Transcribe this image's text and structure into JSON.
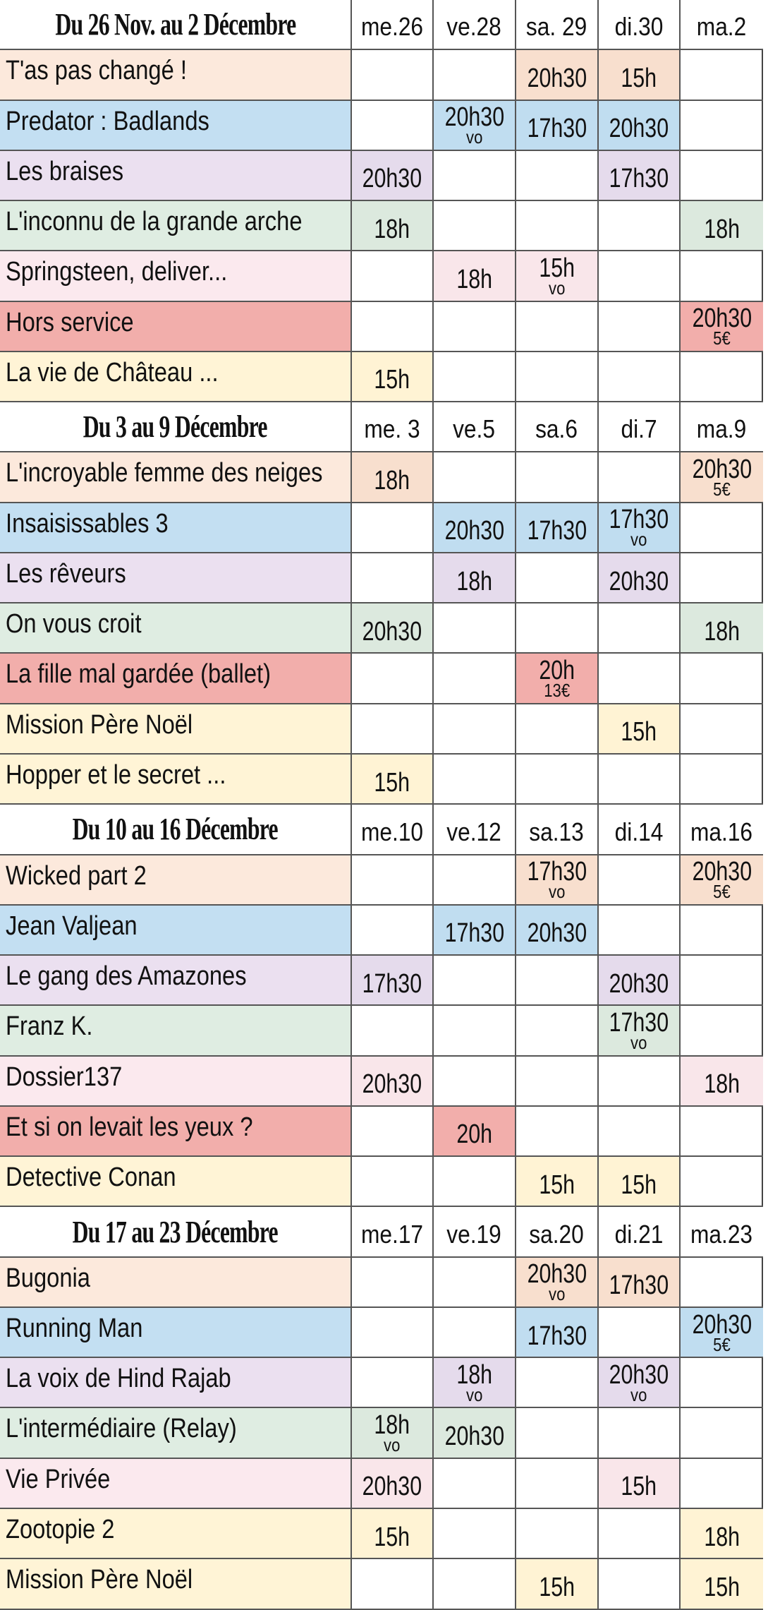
{
  "colors": {
    "peach": "#fce9dc",
    "blue": "#c3dff2",
    "lavender": "#ebe0f0",
    "green": "#dfede2",
    "pink": "#fbe9ee",
    "red": "#f2aeab",
    "yellow": "#fff4d6"
  },
  "cell_colors": {
    "peach": "#f8dfce",
    "blue": "#c0ddf0",
    "lavender": "#e5dbec",
    "green": "#dce9de",
    "pink": "#f9e6ea",
    "red": "#f2aeab",
    "yellow": "#fff3d4"
  },
  "weeks": [
    {
      "title": "Du 26 Nov. au 2 Décembre",
      "days": [
        "me.26",
        "ve.28",
        "sa. 29",
        "di.30",
        "ma.2"
      ],
      "films": [
        {
          "title": "T'as pas changé !",
          "color": "peach",
          "showings": [
            null,
            null,
            {
              "time": "20h30"
            },
            {
              "time": "15h"
            },
            null
          ]
        },
        {
          "title": "Predator : Badlands",
          "color": "blue",
          "showings": [
            null,
            {
              "time": "20h30",
              "note": "vo"
            },
            {
              "time": "17h30"
            },
            {
              "time": "20h30"
            },
            null
          ]
        },
        {
          "title": "Les braises",
          "color": "lavender",
          "showings": [
            {
              "time": "20h30"
            },
            null,
            null,
            {
              "time": "17h30"
            },
            null
          ]
        },
        {
          "title": "L'inconnu de la grande arche",
          "color": "green",
          "showings": [
            {
              "time": "18h"
            },
            null,
            null,
            null,
            {
              "time": "18h"
            }
          ]
        },
        {
          "title": "Springsteen, deliver...",
          "color": "pink",
          "showings": [
            null,
            {
              "time": "18h"
            },
            {
              "time": "15h",
              "note": "vo"
            },
            null,
            null
          ]
        },
        {
          "title": "Hors service",
          "color": "red",
          "showings": [
            null,
            null,
            null,
            null,
            {
              "time": "20h30",
              "note": "5€"
            }
          ]
        },
        {
          "title": "La vie de Château ...",
          "color": "yellow",
          "showings": [
            {
              "time": "15h"
            },
            null,
            null,
            null,
            null
          ]
        }
      ]
    },
    {
      "title": "Du 3 au 9 Décembre",
      "days": [
        "me. 3",
        "ve.5",
        "sa.6",
        "di.7",
        "ma.9"
      ],
      "films": [
        {
          "title": "L'incroyable femme des neiges",
          "color": "peach",
          "showings": [
            {
              "time": "18h"
            },
            null,
            null,
            null,
            {
              "time": "20h30",
              "note": "5€"
            }
          ]
        },
        {
          "title": "Insaisissables 3",
          "color": "blue",
          "showings": [
            null,
            {
              "time": "20h30"
            },
            {
              "time": "17h30"
            },
            {
              "time": "17h30",
              "note": "vo"
            },
            null
          ]
        },
        {
          "title": "Les rêveurs",
          "color": "lavender",
          "showings": [
            null,
            {
              "time": "18h"
            },
            null,
            {
              "time": "20h30"
            },
            null
          ]
        },
        {
          "title": "On vous croit",
          "color": "green",
          "showings": [
            {
              "time": "20h30"
            },
            null,
            null,
            null,
            {
              "time": "18h"
            }
          ]
        },
        {
          "title": "La fille mal gardée (ballet)",
          "color": "red",
          "showings": [
            null,
            null,
            {
              "time": "20h",
              "note": "13€"
            },
            null,
            null
          ]
        },
        {
          "title": "Mission Père Noël",
          "color": "yellow",
          "showings": [
            null,
            null,
            null,
            {
              "time": "15h"
            },
            null
          ]
        },
        {
          "title": "Hopper et le secret ...",
          "color": "yellow",
          "showings": [
            {
              "time": "15h"
            },
            null,
            null,
            null,
            null
          ]
        }
      ]
    },
    {
      "title": "Du 10 au 16 Décembre",
      "days": [
        "me.10",
        "ve.12",
        "sa.13",
        "di.14",
        "ma.16"
      ],
      "films": [
        {
          "title": "Wicked part 2",
          "color": "peach",
          "showings": [
            null,
            null,
            {
              "time": "17h30",
              "note": "vo"
            },
            null,
            {
              "time": "20h30",
              "note": "5€"
            }
          ]
        },
        {
          "title": "Jean Valjean",
          "color": "blue",
          "showings": [
            null,
            {
              "time": "17h30"
            },
            {
              "time": "20h30"
            },
            null,
            null
          ]
        },
        {
          "title": "Le gang des Amazones",
          "color": "lavender",
          "showings": [
            {
              "time": "17h30"
            },
            null,
            null,
            {
              "time": "20h30"
            },
            null
          ]
        },
        {
          "title": "Franz K.",
          "color": "green",
          "showings": [
            null,
            null,
            null,
            {
              "time": "17h30",
              "note": "vo"
            },
            null
          ]
        },
        {
          "title": "Dossier137",
          "color": "pink",
          "showings": [
            {
              "time": "20h30"
            },
            null,
            null,
            null,
            {
              "time": "18h"
            }
          ]
        },
        {
          "title": "Et si on levait les yeux ?",
          "color": "red",
          "showings": [
            null,
            {
              "time": "20h"
            },
            null,
            null,
            null
          ]
        },
        {
          "title": "Detective Conan",
          "color": "yellow",
          "showings": [
            null,
            null,
            {
              "time": "15h"
            },
            {
              "time": "15h"
            },
            null
          ]
        }
      ]
    },
    {
      "title": "Du 17 au 23 Décembre",
      "days": [
        "me.17",
        "ve.19",
        "sa.20",
        "di.21",
        "ma.23"
      ],
      "films": [
        {
          "title": "Bugonia",
          "color": "peach",
          "showings": [
            null,
            null,
            {
              "time": "20h30",
              "note": "vo"
            },
            {
              "time": "17h30"
            },
            null
          ]
        },
        {
          "title": "Running Man",
          "color": "blue",
          "showings": [
            null,
            null,
            {
              "time": "17h30"
            },
            null,
            {
              "time": "20h30",
              "note": "5€"
            }
          ]
        },
        {
          "title": "La voix de Hind Rajab",
          "color": "lavender",
          "showings": [
            null,
            {
              "time": "18h",
              "note": "vo"
            },
            null,
            {
              "time": "20h30",
              "note": "vo"
            },
            null
          ]
        },
        {
          "title": "L'intermédiaire (Relay)",
          "color": "green",
          "showings": [
            {
              "time": "18h",
              "note": "vo"
            },
            {
              "time": "20h30"
            },
            null,
            null,
            null
          ]
        },
        {
          "title": "Vie Privée",
          "color": "pink",
          "showings": [
            {
              "time": "20h30"
            },
            null,
            null,
            {
              "time": "15h"
            },
            null
          ]
        },
        {
          "title": "Zootopie 2",
          "color": "yellow",
          "showings": [
            {
              "time": "15h"
            },
            null,
            null,
            null,
            {
              "time": "18h"
            }
          ]
        },
        {
          "title": "Mission Père Noël",
          "color": "yellow",
          "showings": [
            null,
            null,
            {
              "time": "15h"
            },
            null,
            {
              "time": "15h"
            }
          ]
        }
      ]
    }
  ]
}
